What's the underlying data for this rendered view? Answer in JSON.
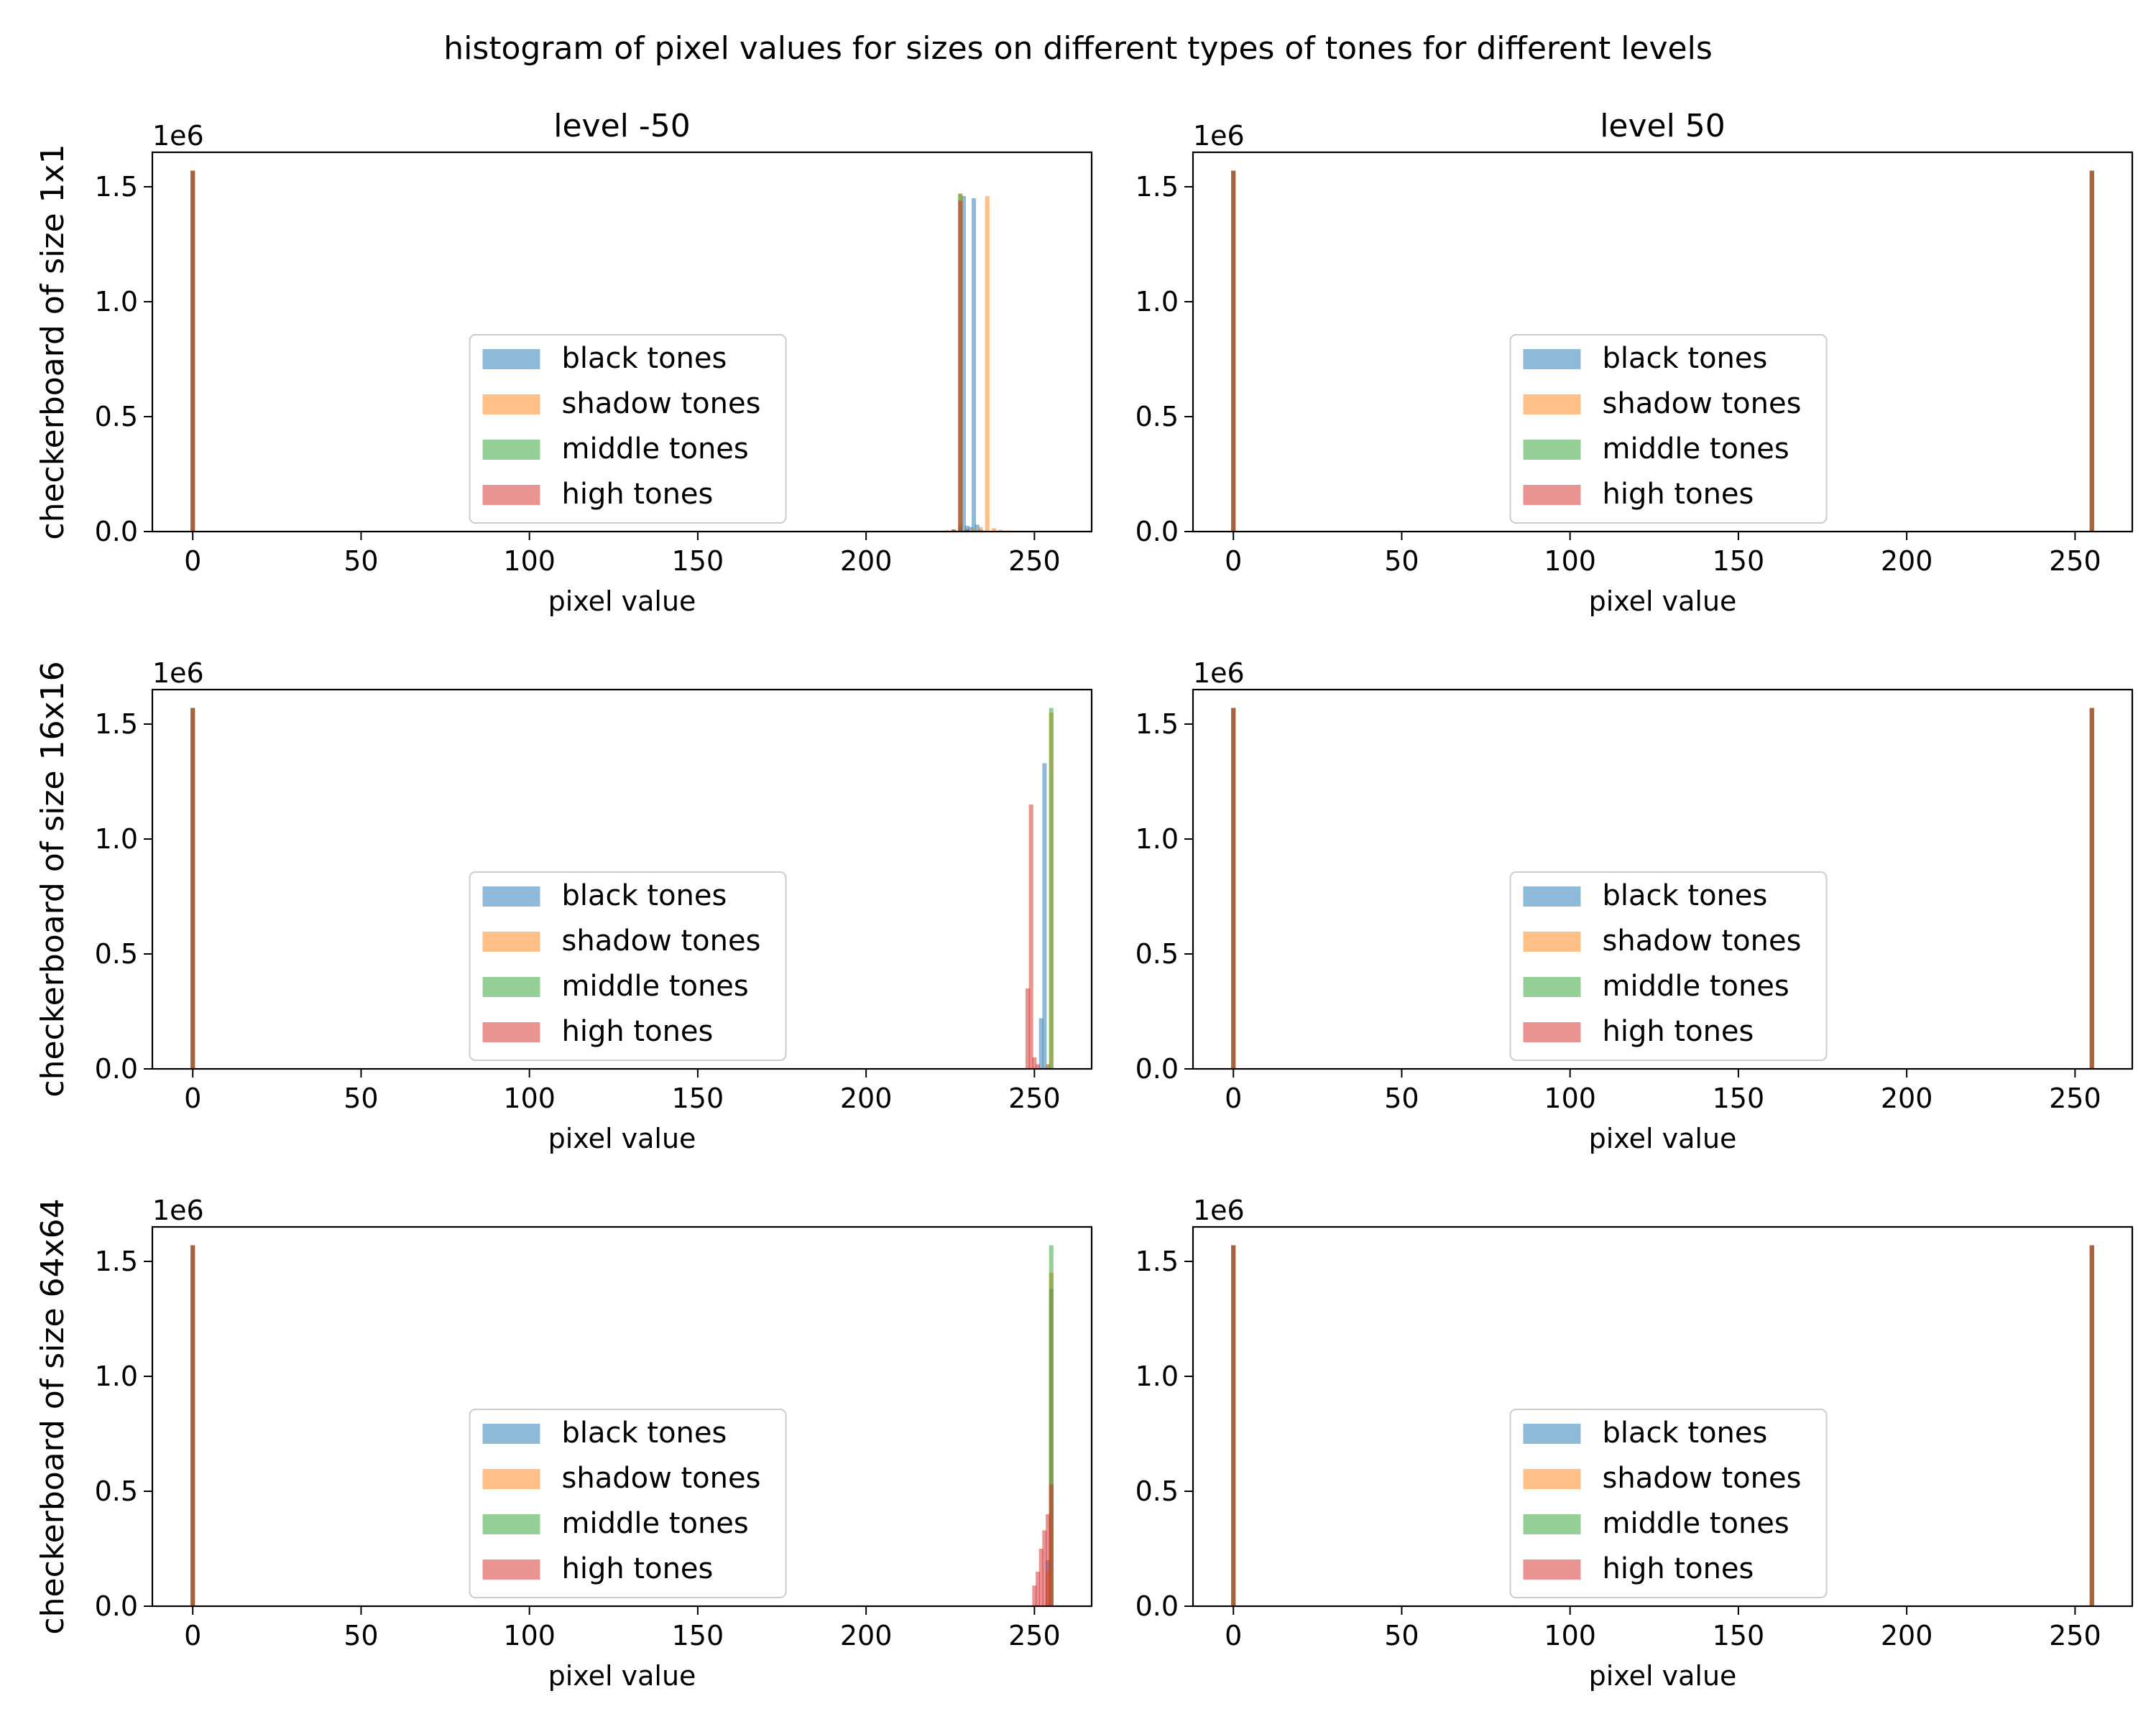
{
  "chart_data": {
    "type": "bar",
    "title": "histogram of pixel values for sizes on different types of tones for different levels",
    "grid": "off",
    "legend_placement": "lower center",
    "series_names": [
      "black tones",
      "shadow tones",
      "middle tones",
      "high tones"
    ],
    "colors": {
      "black tones": "#1f77b4",
      "shadow tones": "#ff7f0e",
      "middle tones": "#2ca02c",
      "high tones": "#d62728",
      "overlap": "#8c5a2b",
      "axes": "#000000"
    },
    "bar_alpha": 0.5,
    "xlim": [
      -12,
      267
    ],
    "ylim": [
      0,
      1650000
    ],
    "x_ticks": [
      0,
      50,
      100,
      150,
      200,
      250
    ],
    "y_ticks": [
      0,
      500000,
      1000000,
      1500000
    ],
    "y_tick_labels": [
      "0.0",
      "0.5",
      "1.0",
      "1.5"
    ],
    "y_offset_text": "1e6",
    "xlabel": "pixel value",
    "column_titles": [
      "level -50",
      "level 50"
    ],
    "row_labels": [
      "checkerboard of size 1x1",
      "checkerboard of size 16x16",
      "checkerboard of size 64x64"
    ],
    "subplots": [
      {
        "row": 0,
        "col": 0,
        "title": "level -50",
        "ylabel": "checkerboard of size 1x1",
        "series": [
          {
            "name": "black tones",
            "x": [
              0,
              228,
              229,
              230,
              231,
              232,
              233,
              234
            ],
            "values": [
              1570000,
              30000,
              1460000,
              25000,
              20000,
              1450000,
              30000,
              10000
            ]
          },
          {
            "name": "shadow tones",
            "x": [
              0,
              226,
              228,
              232,
              234,
              236,
              238,
              240,
              242
            ],
            "values": [
              1570000,
              5000,
              1470000,
              15000,
              20000,
              1460000,
              15000,
              8000,
              4000
            ]
          },
          {
            "name": "middle tones",
            "x": [
              0,
              224,
              226,
              228,
              230,
              232
            ],
            "values": [
              1570000,
              3000,
              8000,
              1470000,
              10000,
              5000
            ]
          },
          {
            "name": "high tones",
            "x": [
              0,
              224,
              226,
              228,
              230
            ],
            "values": [
              1570000,
              5000,
              10000,
              1440000,
              8000
            ]
          }
        ]
      },
      {
        "row": 0,
        "col": 1,
        "title": "level 50",
        "ylabel": "",
        "series": [
          {
            "name": "black tones",
            "x": [
              0,
              255
            ],
            "values": [
              1570000,
              1570000
            ]
          },
          {
            "name": "shadow tones",
            "x": [
              0,
              255
            ],
            "values": [
              1570000,
              1570000
            ]
          },
          {
            "name": "middle tones",
            "x": [
              0,
              255
            ],
            "values": [
              1570000,
              1570000
            ]
          },
          {
            "name": "high tones",
            "x": [
              0,
              255
            ],
            "values": [
              1570000,
              1570000
            ]
          }
        ]
      },
      {
        "row": 1,
        "col": 0,
        "title": "",
        "ylabel": "checkerboard of size 16x16",
        "series": [
          {
            "name": "black tones",
            "x": [
              0,
              252,
              253,
              254
            ],
            "values": [
              1570000,
              220000,
              1330000,
              20000
            ]
          },
          {
            "name": "shadow tones",
            "x": [
              0,
              254,
              255
            ],
            "values": [
              1570000,
              20000,
              1550000
            ]
          },
          {
            "name": "middle tones",
            "x": [
              0,
              255
            ],
            "values": [
              1570000,
              1570000
            ]
          },
          {
            "name": "high tones",
            "x": [
              0,
              248,
              249,
              250,
              251
            ],
            "values": [
              1570000,
              350000,
              1150000,
              50000,
              20000
            ]
          }
        ]
      },
      {
        "row": 1,
        "col": 1,
        "title": "",
        "ylabel": "",
        "series": [
          {
            "name": "black tones",
            "x": [
              0,
              255
            ],
            "values": [
              1570000,
              1570000
            ]
          },
          {
            "name": "shadow tones",
            "x": [
              0,
              255
            ],
            "values": [
              1570000,
              1570000
            ]
          },
          {
            "name": "middle tones",
            "x": [
              0,
              255
            ],
            "values": [
              1570000,
              1570000
            ]
          },
          {
            "name": "high tones",
            "x": [
              0,
              255
            ],
            "values": [
              1570000,
              1570000
            ]
          }
        ]
      },
      {
        "row": 2,
        "col": 0,
        "title": "",
        "ylabel": "checkerboard of size 64x64",
        "series": [
          {
            "name": "black tones",
            "x": [
              0,
              254,
              255
            ],
            "values": [
              1570000,
              200000,
              1380000
            ]
          },
          {
            "name": "shadow tones",
            "x": [
              0,
              254,
              255
            ],
            "values": [
              1570000,
              150000,
              1450000
            ]
          },
          {
            "name": "middle tones",
            "x": [
              0,
              255
            ],
            "values": [
              1570000,
              1570000
            ]
          },
          {
            "name": "high tones",
            "x": [
              0,
              250,
              251,
              252,
              253,
              254,
              255
            ],
            "values": [
              1570000,
              90000,
              150000,
              250000,
              330000,
              400000,
              530000
            ]
          }
        ]
      },
      {
        "row": 2,
        "col": 1,
        "title": "",
        "ylabel": "",
        "series": [
          {
            "name": "black tones",
            "x": [
              0,
              255
            ],
            "values": [
              1570000,
              1570000
            ]
          },
          {
            "name": "shadow tones",
            "x": [
              0,
              255
            ],
            "values": [
              1570000,
              1570000
            ]
          },
          {
            "name": "middle tones",
            "x": [
              0,
              255
            ],
            "values": [
              1570000,
              1570000
            ]
          },
          {
            "name": "high tones",
            "x": [
              0,
              255
            ],
            "values": [
              1570000,
              1570000
            ]
          }
        ]
      }
    ]
  }
}
